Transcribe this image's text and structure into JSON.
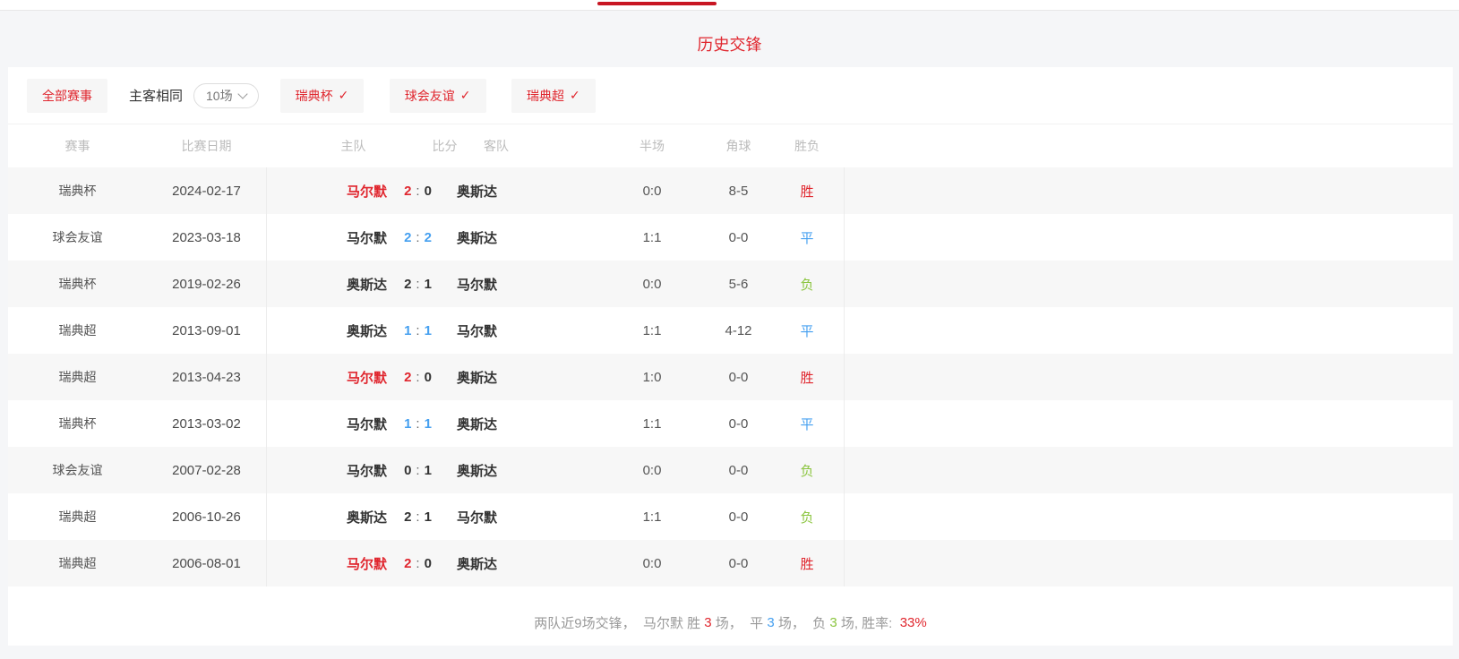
{
  "colors": {
    "red": "#e0262e",
    "blue": "#46a0f0",
    "green": "#8bc53f",
    "tab": "#c81623"
  },
  "page": {
    "title": "历史交锋"
  },
  "filters": {
    "all_label": "全部赛事",
    "same_venue_label": "主客相同",
    "count_select": {
      "value": "10场"
    },
    "check_mark": "✓",
    "leagues": [
      {
        "label": "瑞典杯"
      },
      {
        "label": "球会友谊"
      },
      {
        "label": "瑞典超"
      }
    ]
  },
  "table": {
    "headers": [
      "赛事",
      "比赛日期",
      "主队",
      "比分",
      "客队",
      "半场",
      "角球",
      "胜负"
    ],
    "score_colon": ":",
    "rows": [
      {
        "league": "瑞典杯",
        "date": "2024-02-17",
        "home": "马尔默",
        "hs": "2",
        "as": "0",
        "away": "奥斯达",
        "half": "0:0",
        "corner": "8-5",
        "result": "胜",
        "result_cls": "red",
        "home_cls": "red",
        "hs_cls": "red",
        "as_cls": ""
      },
      {
        "league": "球会友谊",
        "date": "2023-03-18",
        "home": "马尔默",
        "hs": "2",
        "as": "2",
        "away": "奥斯达",
        "half": "1:1",
        "corner": "0-0",
        "result": "平",
        "result_cls": "blue",
        "home_cls": "",
        "hs_cls": "blue",
        "as_cls": "blue"
      },
      {
        "league": "瑞典杯",
        "date": "2019-02-26",
        "home": "奥斯达",
        "hs": "2",
        "as": "1",
        "away": "马尔默",
        "half": "0:0",
        "corner": "5-6",
        "result": "负",
        "result_cls": "green",
        "home_cls": "",
        "hs_cls": "",
        "as_cls": ""
      },
      {
        "league": "瑞典超",
        "date": "2013-09-01",
        "home": "奥斯达",
        "hs": "1",
        "as": "1",
        "away": "马尔默",
        "half": "1:1",
        "corner": "4-12",
        "result": "平",
        "result_cls": "blue",
        "home_cls": "",
        "hs_cls": "blue",
        "as_cls": "blue"
      },
      {
        "league": "瑞典超",
        "date": "2013-04-23",
        "home": "马尔默",
        "hs": "2",
        "as": "0",
        "away": "奥斯达",
        "half": "1:0",
        "corner": "0-0",
        "result": "胜",
        "result_cls": "red",
        "home_cls": "red",
        "hs_cls": "red",
        "as_cls": ""
      },
      {
        "league": "瑞典杯",
        "date": "2013-03-02",
        "home": "马尔默",
        "hs": "1",
        "as": "1",
        "away": "奥斯达",
        "half": "1:1",
        "corner": "0-0",
        "result": "平",
        "result_cls": "blue",
        "home_cls": "",
        "hs_cls": "blue",
        "as_cls": "blue"
      },
      {
        "league": "球会友谊",
        "date": "2007-02-28",
        "home": "马尔默",
        "hs": "0",
        "as": "1",
        "away": "奥斯达",
        "half": "0:0",
        "corner": "0-0",
        "result": "负",
        "result_cls": "green",
        "home_cls": "",
        "hs_cls": "",
        "as_cls": ""
      },
      {
        "league": "瑞典超",
        "date": "2006-10-26",
        "home": "奥斯达",
        "hs": "2",
        "as": "1",
        "away": "马尔默",
        "half": "1:1",
        "corner": "0-0",
        "result": "负",
        "result_cls": "green",
        "home_cls": "",
        "hs_cls": "",
        "as_cls": ""
      },
      {
        "league": "瑞典超",
        "date": "2006-08-01",
        "home": "马尔默",
        "hs": "2",
        "as": "0",
        "away": "奥斯达",
        "half": "0:0",
        "corner": "0-0",
        "result": "胜",
        "result_cls": "red",
        "home_cls": "red",
        "hs_cls": "red",
        "as_cls": ""
      }
    ]
  },
  "summary": {
    "segments": [
      {
        "text": "两队近9场交锋，  马尔默 胜 ",
        "cls": ""
      },
      {
        "text": "3",
        "cls": "red"
      },
      {
        "text": " 场，  平 ",
        "cls": ""
      },
      {
        "text": "3",
        "cls": "blue"
      },
      {
        "text": " 场，  负 ",
        "cls": ""
      },
      {
        "text": "3",
        "cls": "green"
      },
      {
        "text": " 场, 胜率:  ",
        "cls": ""
      },
      {
        "text": "33%",
        "cls": "red"
      }
    ]
  }
}
